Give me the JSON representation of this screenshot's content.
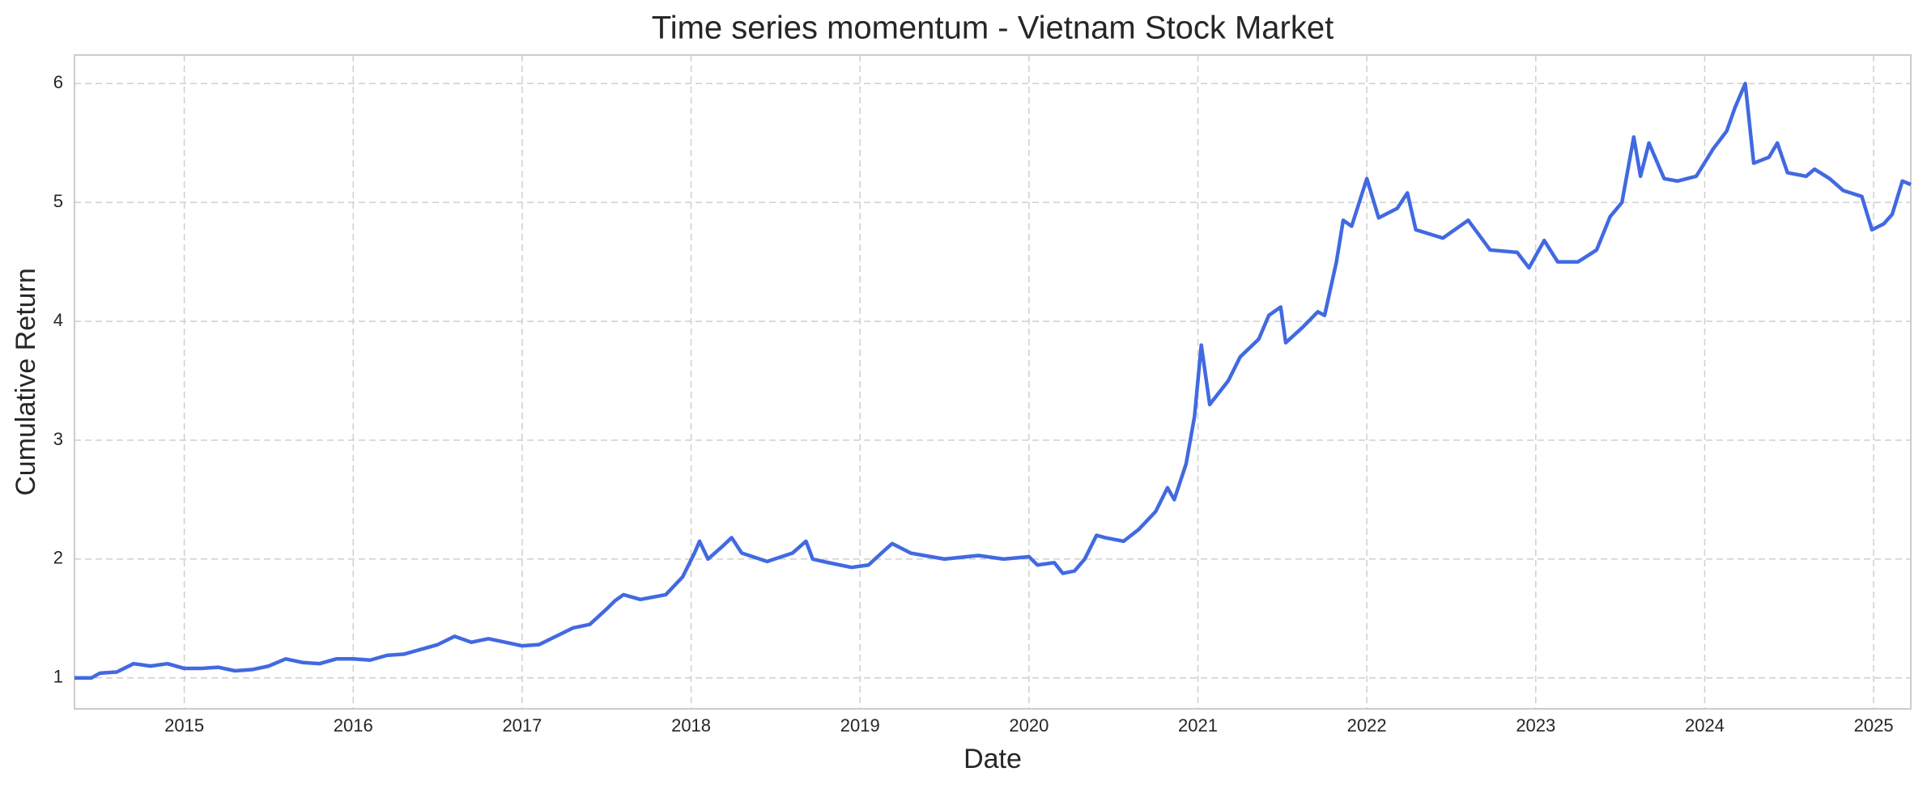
{
  "chart_data": {
    "type": "line",
    "title": "Time series momentum - Vietnam Stock Market",
    "x_label": "Date",
    "y_label": "Cumulative Return",
    "x": [
      2014.35,
      2014.45,
      2014.5,
      2014.6,
      2014.7,
      2014.8,
      2014.9,
      2015.0,
      2015.1,
      2015.2,
      2015.3,
      2015.4,
      2015.5,
      2015.6,
      2015.7,
      2015.8,
      2015.9,
      2016.0,
      2016.1,
      2016.2,
      2016.3,
      2016.4,
      2016.5,
      2016.6,
      2016.7,
      2016.8,
      2016.9,
      2017.0,
      2017.1,
      2017.2,
      2017.3,
      2017.4,
      2017.5,
      2017.55,
      2017.6,
      2017.7,
      2017.85,
      2017.95,
      2018.02,
      2018.05,
      2018.1,
      2018.18,
      2018.24,
      2018.3,
      2018.45,
      2018.6,
      2018.68,
      2018.72,
      2018.78,
      2018.95,
      2019.05,
      2019.15,
      2019.19,
      2019.3,
      2019.5,
      2019.7,
      2019.85,
      2020.0,
      2020.05,
      2020.15,
      2020.2,
      2020.27,
      2020.33,
      2020.4,
      2020.45,
      2020.56,
      2020.65,
      2020.75,
      2020.82,
      2020.86,
      2020.93,
      2020.98,
      2021.02,
      2021.07,
      2021.18,
      2021.25,
      2021.36,
      2021.42,
      2021.49,
      2021.52,
      2021.62,
      2021.71,
      2021.75,
      2021.82,
      2021.86,
      2021.91,
      2022.0,
      2022.07,
      2022.18,
      2022.24,
      2022.29,
      2022.45,
      2022.6,
      2022.73,
      2022.89,
      2022.96,
      2023.05,
      2023.13,
      2023.25,
      2023.36,
      2023.44,
      2023.51,
      2023.58,
      2023.62,
      2023.67,
      2023.76,
      2023.84,
      2023.95,
      2024.05,
      2024.13,
      2024.18,
      2024.24,
      2024.29,
      2024.38,
      2024.43,
      2024.49,
      2024.6,
      2024.65,
      2024.74,
      2024.82,
      2024.93,
      2024.99,
      2025.06,
      2025.11,
      2025.17,
      2025.22
    ],
    "series": [
      {
        "name": "Cumulative Return",
        "color": "#4169e1",
        "values": [
          1.0,
          1.0,
          1.04,
          1.05,
          1.12,
          1.1,
          1.12,
          1.08,
          1.08,
          1.09,
          1.06,
          1.07,
          1.1,
          1.16,
          1.13,
          1.12,
          1.16,
          1.16,
          1.15,
          1.19,
          1.2,
          1.24,
          1.28,
          1.35,
          1.3,
          1.33,
          1.3,
          1.27,
          1.28,
          1.35,
          1.42,
          1.45,
          1.58,
          1.65,
          1.7,
          1.66,
          1.7,
          1.85,
          2.05,
          2.15,
          2.0,
          2.1,
          2.18,
          2.05,
          1.98,
          2.05,
          2.15,
          2.0,
          1.98,
          1.93,
          1.95,
          2.08,
          2.13,
          2.05,
          2.0,
          2.03,
          2.0,
          2.02,
          1.95,
          1.97,
          1.88,
          1.9,
          2.0,
          2.2,
          2.18,
          2.15,
          2.25,
          2.4,
          2.6,
          2.5,
          2.8,
          3.2,
          3.8,
          3.3,
          3.5,
          3.7,
          3.85,
          4.05,
          4.12,
          3.82,
          3.95,
          4.08,
          4.05,
          4.5,
          4.85,
          4.8,
          5.2,
          4.87,
          4.95,
          5.08,
          4.77,
          4.7,
          4.85,
          4.6,
          4.58,
          4.45,
          4.68,
          4.5,
          4.5,
          4.6,
          4.88,
          5.0,
          5.55,
          5.22,
          5.5,
          5.2,
          5.18,
          5.22,
          5.45,
          5.6,
          5.8,
          6.0,
          5.33,
          5.38,
          5.5,
          5.25,
          5.22,
          5.28,
          5.2,
          5.1,
          5.05,
          4.77,
          4.82,
          4.9,
          5.18,
          5.15
        ]
      }
    ],
    "xlim": [
      2014.35,
      2025.22
    ],
    "xticks": [
      2015,
      2016,
      2017,
      2018,
      2019,
      2020,
      2021,
      2022,
      2023,
      2024,
      2025
    ],
    "ylim": [
      0.74,
      6.24
    ],
    "yticks": [
      1,
      2,
      3,
      4,
      5,
      6
    ],
    "grid": true
  }
}
